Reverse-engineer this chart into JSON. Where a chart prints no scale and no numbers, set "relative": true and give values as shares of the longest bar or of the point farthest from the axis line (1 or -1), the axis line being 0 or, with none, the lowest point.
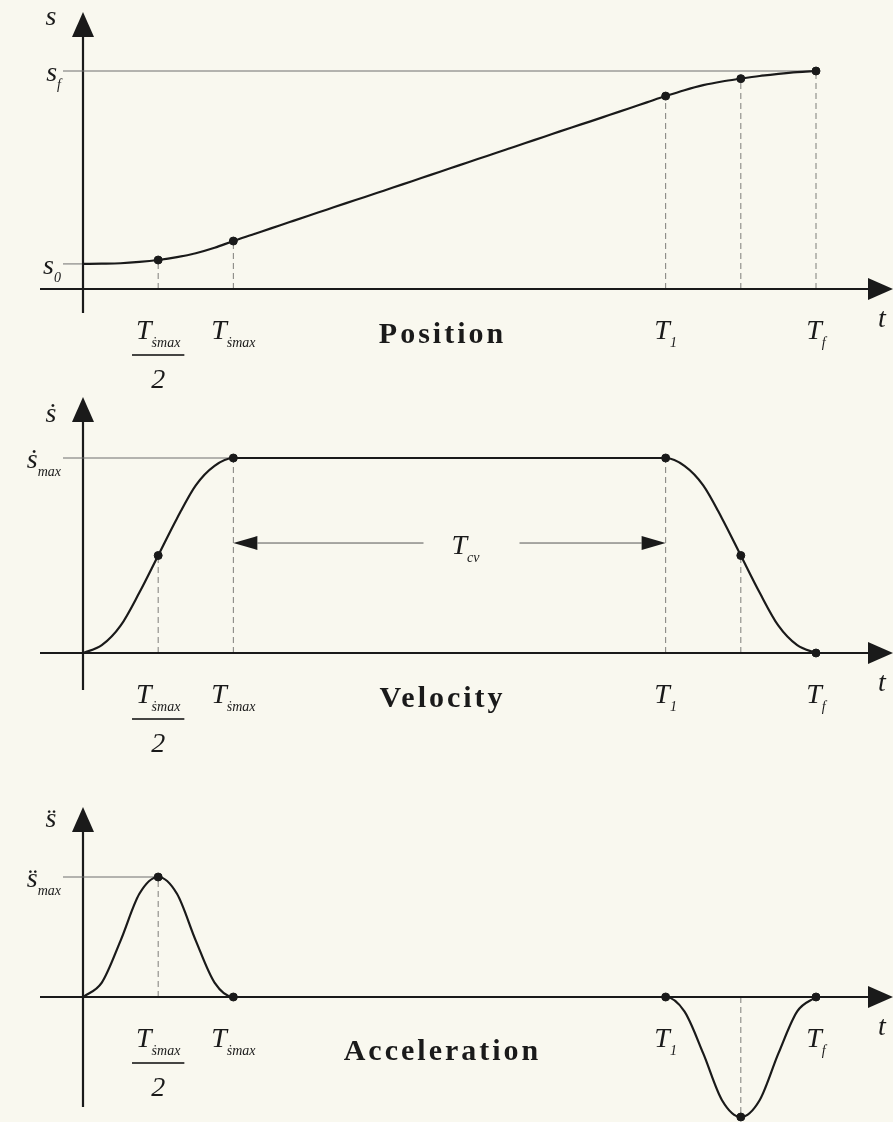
{
  "chart_data": [
    {
      "type": "line",
      "title": "Position",
      "xlabel": "t",
      "ylabel": "s",
      "relative": true,
      "categories": [
        null,
        null,
        null,
        null,
        "T$_{ṡmax}$\n2",
        null,
        null,
        null,
        "T$_{ṡmax}$",
        null,
        null,
        null,
        null,
        null,
        null,
        null,
        null,
        null,
        null,
        null,
        null,
        null,
        null,
        null,
        null,
        null,
        null,
        null,
        null,
        null,
        null,
        "T$_{1}$",
        null,
        null,
        null,
        null,
        null,
        null,
        null,
        "T$_{f}$"
      ],
      "series": [
        {
          "color": "#1a1a1a",
          "values": [
            0.115,
            0.116,
            0.118,
            0.124,
            0.133,
            0.146,
            0.164,
            0.189,
            0.22,
            0.249,
            0.278,
            0.307,
            0.336,
            0.365,
            0.394,
            0.422,
            0.451,
            0.48,
            0.509,
            0.538,
            0.567,
            0.596,
            0.625,
            0.654,
            0.683,
            0.712,
            0.741,
            0.769,
            0.798,
            0.827,
            0.856,
            0.885,
            0.912,
            0.935,
            0.952,
            0.965,
            0.977,
            0.987,
            0.995,
            1
          ]
        },
        {
          "type": "lollipop",
          "color": "#1a1a1a",
          "marker": "circle",
          "line_style": "dashed",
          "values": [
            null,
            null,
            null,
            null,
            0.133,
            null,
            null,
            null,
            0.22,
            null,
            null,
            null,
            null,
            null,
            null,
            null,
            null,
            null,
            null,
            null,
            null,
            null,
            null,
            null,
            null,
            null,
            null,
            null,
            null,
            null,
            null,
            0.885,
            null,
            null,
            null,
            0.965,
            null,
            null,
            null,
            1
          ]
        }
      ],
      "ref_lines": [
        {
          "axis": "y",
          "value": 0.115,
          "label": "s$_{0}$",
          "color": "#6f6f6f"
        },
        {
          "axis": "y",
          "value": 1,
          "label": "s$_{f}$",
          "color": "#6f6f6f"
        }
      ]
    },
    {
      "type": "line",
      "title": "Velocity",
      "xlabel": "t",
      "ylabel": "ṡ",
      "relative": true,
      "categories": [
        null,
        null,
        null,
        null,
        "T$_{ṡmax}$\n2",
        null,
        null,
        null,
        "T$_{ṡmax}$",
        null,
        null,
        null,
        null,
        null,
        null,
        null,
        null,
        null,
        null,
        null,
        null,
        null,
        null,
        null,
        null,
        null,
        null,
        null,
        null,
        null,
        null,
        "T$_{1}$",
        null,
        null,
        null,
        null,
        null,
        null,
        null,
        "T$_{f}$"
      ],
      "series": [
        {
          "color": "#1a1a1a",
          "values": [
            0,
            0.04,
            0.14,
            0.31,
            0.5,
            0.69,
            0.86,
            0.96,
            1,
            1,
            1,
            1,
            1,
            1,
            1,
            1,
            1,
            1,
            1,
            1,
            1,
            1,
            1,
            1,
            1,
            1,
            1,
            1,
            1,
            1,
            1,
            1,
            0.96,
            0.86,
            0.69,
            0.5,
            0.31,
            0.14,
            0.04,
            0
          ]
        },
        {
          "type": "lollipop",
          "color": "#1a1a1a",
          "marker": "circle",
          "line_style": "dashed",
          "values": [
            null,
            null,
            null,
            null,
            0.5,
            null,
            null,
            null,
            1,
            null,
            null,
            null,
            null,
            null,
            null,
            null,
            null,
            null,
            null,
            null,
            null,
            null,
            null,
            null,
            null,
            null,
            null,
            null,
            null,
            null,
            null,
            1,
            null,
            null,
            null,
            0.5,
            null,
            null,
            null,
            0
          ]
        }
      ],
      "ref_lines": [
        {
          "axis": "y",
          "value": 1,
          "label": "ṡ$_{max}$",
          "color": "#6f6f6f"
        }
      ],
      "annotations": [
        "T$_{cv}$"
      ]
    },
    {
      "type": "line",
      "title": "Acceleration",
      "xlabel": "t",
      "ylabel": "s̈",
      "relative": true,
      "categories": [
        null,
        null,
        null,
        null,
        "T$_{ṡmax}$\n2",
        null,
        null,
        null,
        "T$_{ṡmax}$",
        null,
        null,
        null,
        null,
        null,
        null,
        null,
        null,
        null,
        null,
        null,
        null,
        null,
        null,
        null,
        null,
        null,
        null,
        null,
        null,
        null,
        null,
        "T$_{1}$",
        null,
        null,
        null,
        null,
        null,
        null,
        null,
        "T$_{f}$"
      ],
      "series": [
        {
          "color": "#1a1a1a",
          "values": [
            0,
            0.12,
            0.47,
            0.86,
            1,
            0.86,
            0.47,
            0.12,
            0,
            0,
            0,
            0,
            0,
            0,
            0,
            0,
            0,
            0,
            0,
            0,
            0,
            0,
            0,
            0,
            0,
            0,
            0,
            0,
            0,
            0,
            0,
            0,
            -0.12,
            -0.47,
            -0.86,
            -1,
            -0.86,
            -0.47,
            -0.12,
            0
          ]
        },
        {
          "type": "lollipop",
          "color": "#1a1a1a",
          "marker": "circle",
          "line_style": "dashed",
          "values": [
            null,
            null,
            null,
            null,
            1,
            null,
            null,
            null,
            0,
            null,
            null,
            null,
            null,
            null,
            null,
            null,
            null,
            null,
            null,
            null,
            null,
            null,
            null,
            null,
            null,
            null,
            null,
            null,
            null,
            null,
            null,
            0,
            null,
            null,
            null,
            -1,
            null,
            null,
            null,
            0
          ]
        }
      ],
      "ref_lines": [
        {
          "axis": "y",
          "value": 1,
          "label": "s̈$_{max}$",
          "color": "#6f6f6f"
        }
      ]
    }
  ]
}
